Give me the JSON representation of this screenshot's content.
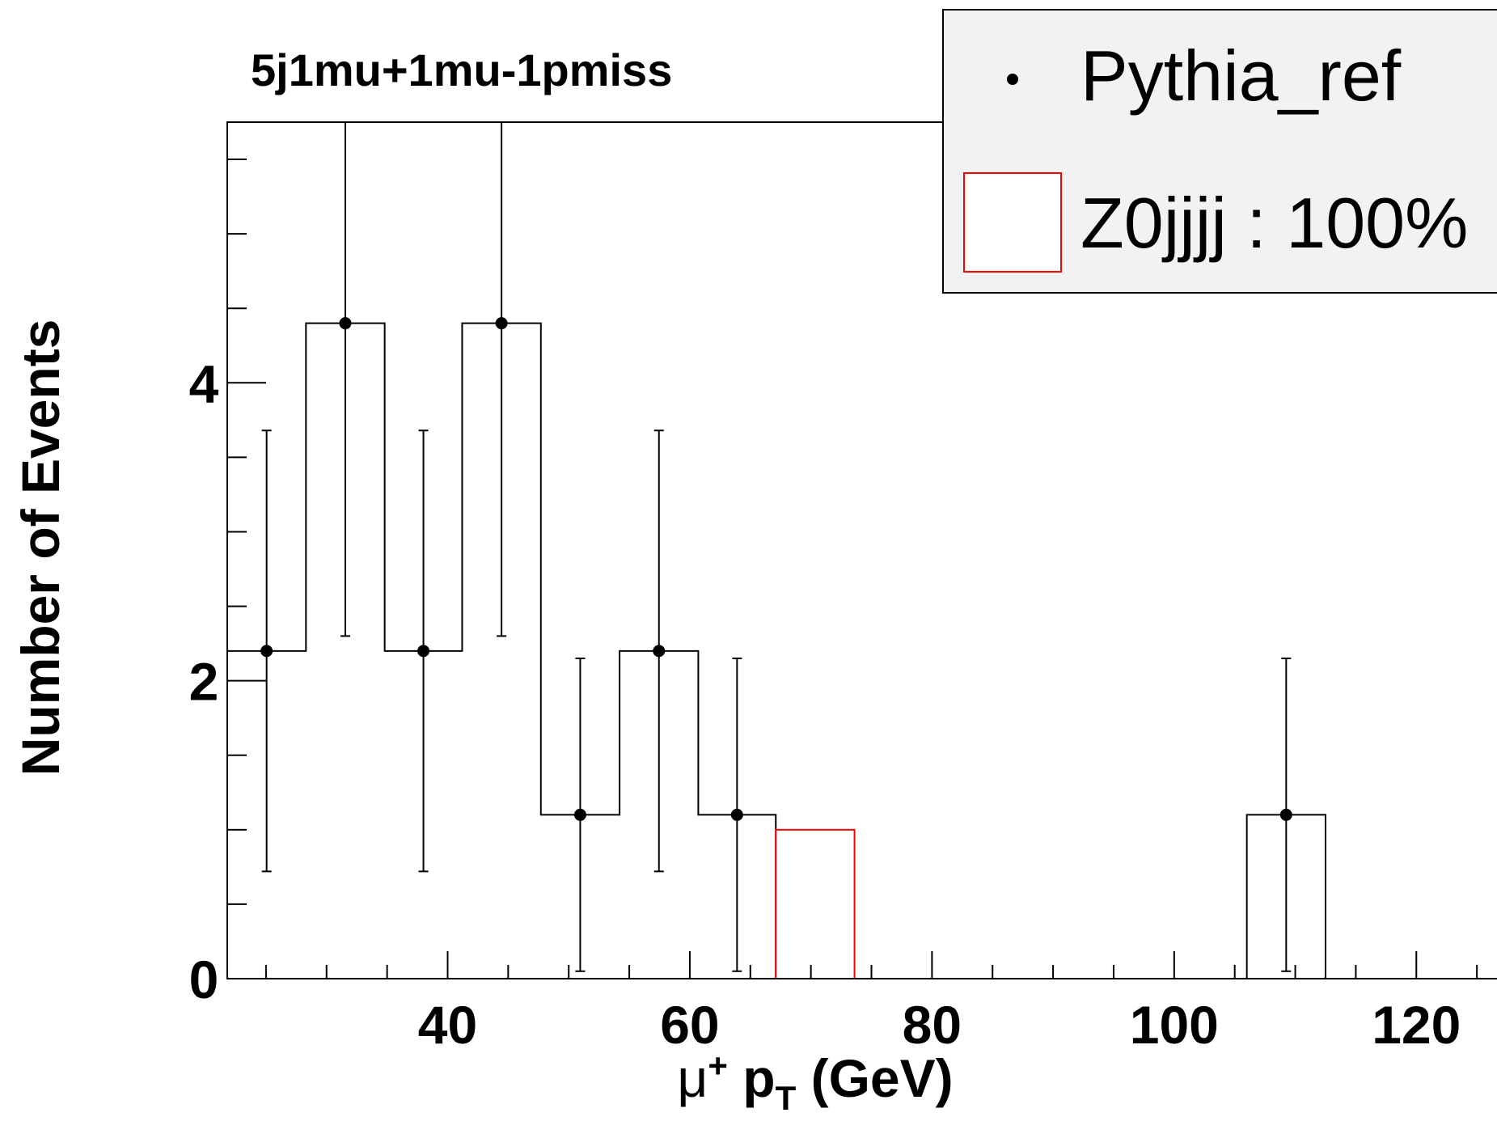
{
  "chart_data": {
    "type": "histogram",
    "title": "5j1mu+1mu-1pmiss",
    "xlabel": {
      "main": "μ",
      "sup": "+",
      "mid": " p",
      "sub": "T",
      "end": " (GeV)"
    },
    "ylabel": "Number of Events",
    "xlim": [
      21.8,
      130
    ],
    "ylim": [
      0,
      5.75
    ],
    "x_ticks": [
      40,
      60,
      80,
      100,
      120
    ],
    "y_ticks": [
      0,
      2,
      4
    ],
    "bin_edges": [
      21.8,
      28.3,
      34.8,
      41.2,
      47.7,
      54.2,
      60.7,
      67.1,
      73.6,
      80.1,
      86.6,
      93.0,
      99.5,
      106.0,
      112.5,
      130
    ],
    "series": [
      {
        "name": "Pythia_ref",
        "style": "points-with-errors",
        "color": "#000000",
        "values": [
          2.2,
          4.4,
          2.2,
          4.4,
          1.1,
          2.2,
          1.1,
          0,
          0,
          0,
          0,
          0,
          0,
          1.1,
          0
        ],
        "err_low": [
          1.48,
          2.1,
          1.48,
          2.1,
          1.05,
          1.48,
          1.05,
          0,
          0,
          0,
          0,
          0,
          0,
          1.05,
          0
        ],
        "err_high": [
          1.48,
          2.1,
          1.48,
          2.1,
          1.05,
          1.48,
          1.05,
          0,
          0,
          0,
          0,
          0,
          0,
          1.05,
          0
        ]
      },
      {
        "name": "Z0jjjj : 100%",
        "style": "step",
        "color": "#ff0000",
        "values": [
          0,
          0,
          0,
          0,
          0,
          0,
          0,
          1.0,
          0,
          0,
          0,
          0,
          0,
          0,
          0
        ]
      }
    ],
    "legend": {
      "position": "top-right"
    }
  }
}
